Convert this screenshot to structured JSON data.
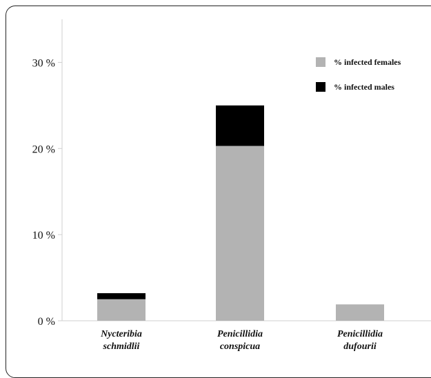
{
  "chart_data": {
    "type": "bar",
    "stacked": true,
    "categories": [
      [
        "Nycteribia",
        "schmidlii"
      ],
      [
        "Penicillidia",
        "conspicua"
      ],
      [
        "Penicillidia",
        "dufourii"
      ]
    ],
    "series": [
      {
        "name": "% infected females",
        "color": "#b3b3b3",
        "values": [
          2.5,
          20.3,
          1.9
        ]
      },
      {
        "name": "% infected males",
        "color": "#000000",
        "values": [
          0.7,
          4.7,
          0
        ]
      }
    ],
    "y_ticks": [
      {
        "value": 0,
        "label": "0 %"
      },
      {
        "value": 10,
        "label": "10 %"
      },
      {
        "value": 20,
        "label": "20 %"
      },
      {
        "value": 30,
        "label": "30 %"
      }
    ],
    "ylim": [
      0,
      35
    ],
    "legend_position": "top-right",
    "grid": false
  }
}
